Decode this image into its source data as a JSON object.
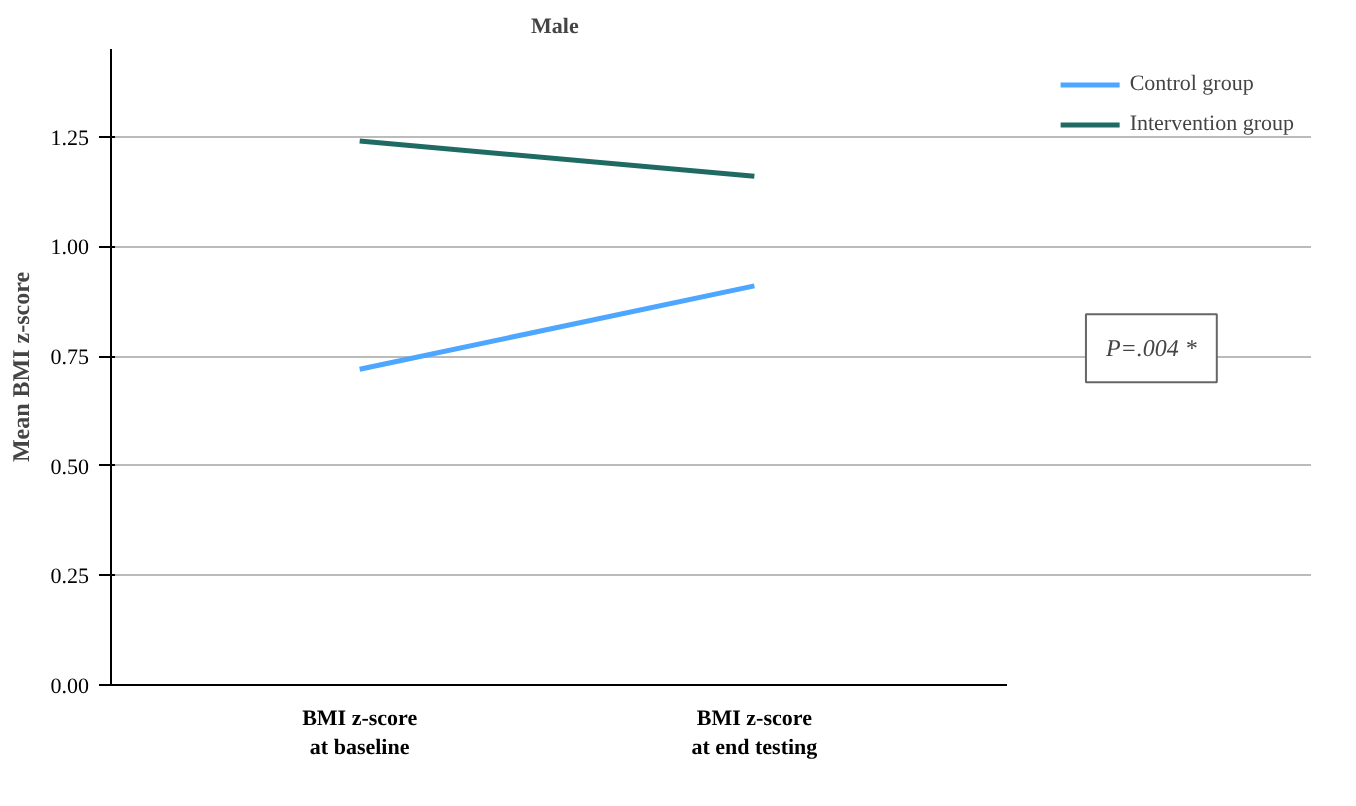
{
  "chart_data": {
    "type": "line",
    "title": "Male",
    "ylabel": "Mean BMI z-score",
    "categories": [
      "BMI z-score\nat baseline",
      "BMI z-score\nat end testing"
    ],
    "series": [
      {
        "name": "Control group",
        "color": "#4da6ff",
        "values": [
          0.72,
          0.91
        ]
      },
      {
        "name": "Intervention group",
        "color": "#1f6b63",
        "values": [
          1.24,
          1.16
        ]
      }
    ],
    "ylim": [
      0,
      1.45
    ],
    "yticks": [
      {
        "value": 0,
        "label": "0.00"
      },
      {
        "value": 0.25,
        "label": "0.25"
      },
      {
        "value": 0.5,
        "label": "0.50"
      },
      {
        "value": 0.75,
        "label": "0.75"
      },
      {
        "value": 1.0,
        "label": "1.00"
      },
      {
        "value": 1.25,
        "label": "1.25"
      }
    ],
    "grid": "y",
    "legend": "right",
    "marker": "none",
    "annotations": [
      "P=.004 *"
    ]
  }
}
